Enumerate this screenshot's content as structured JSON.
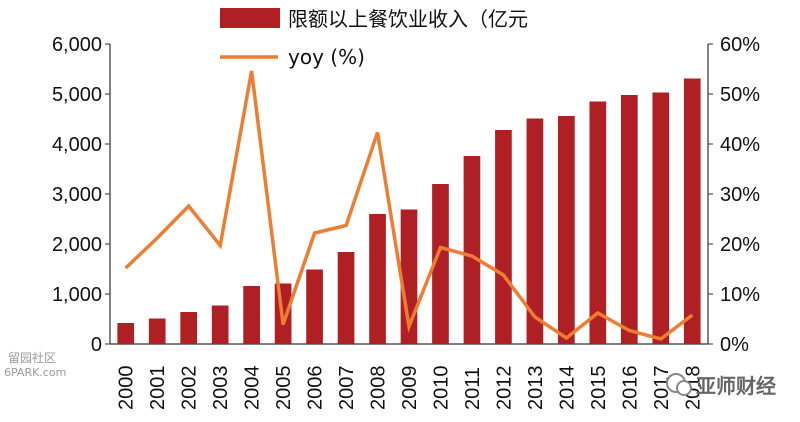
{
  "chart_data": {
    "type": "bar",
    "categories": [
      "2000",
      "2001",
      "2002",
      "2003",
      "2004",
      "2005",
      "2006",
      "2007",
      "2008",
      "2009",
      "2010",
      "2011",
      "2012",
      "2013",
      "2014",
      "2015",
      "2016",
      "2017",
      "2018"
    ],
    "series": [
      {
        "name": "限额以上餐饮业收入（亿元",
        "type": "bar",
        "axis": "left",
        "color": "#b01f24",
        "values": [
          420,
          510,
          640,
          770,
          1160,
          1210,
          1490,
          1840,
          2600,
          2690,
          3200,
          3760,
          4280,
          4510,
          4560,
          4850,
          4980,
          5030,
          5310
        ]
      },
      {
        "name": "yoy (%)",
        "type": "line",
        "axis": "right",
        "color": "#ed7d31",
        "values": [
          15.2,
          21.2,
          27.6,
          19.7,
          54.6,
          3.9,
          22.2,
          23.7,
          42.3,
          3.5,
          19.3,
          17.6,
          13.8,
          5.4,
          1.2,
          6.2,
          2.7,
          1.0,
          5.8
        ]
      }
    ],
    "y_left": {
      "ylim": [
        0,
        6000
      ],
      "ticks": [
        "0",
        "1,000",
        "2,000",
        "3,000",
        "4,000",
        "5,000",
        "6,000"
      ]
    },
    "y_right": {
      "ylim": [
        0,
        60
      ],
      "ticks": [
        "0%",
        "10%",
        "20%",
        "30%",
        "40%",
        "50%",
        "60%"
      ]
    },
    "legend_placement": "top-center",
    "grid": false
  },
  "watermarks": {
    "left": "留园社区",
    "left_url": "6PARK.com",
    "right": "亚师财经"
  }
}
